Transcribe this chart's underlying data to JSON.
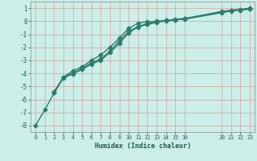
{
  "xlabel": "Humidex (Indice chaleur)",
  "background_color": "#cceee8",
  "grid_color": "#d4a0a0",
  "line_color": "#2d7d6e",
  "xlim": [
    -0.5,
    23.5
  ],
  "ylim": [
    -8.5,
    1.5
  ],
  "xticks": [
    0,
    1,
    2,
    3,
    4,
    5,
    6,
    7,
    8,
    9,
    10,
    11,
    12,
    13,
    14,
    15,
    16,
    20,
    21,
    22,
    23
  ],
  "yticks": [
    -8,
    -7,
    -6,
    -5,
    -4,
    -3,
    -2,
    -1,
    0,
    1
  ],
  "line1_x": [
    0,
    1,
    2,
    3,
    4,
    5,
    6,
    7,
    8,
    9,
    10,
    11,
    12,
    13,
    14,
    15,
    16,
    20,
    21,
    22,
    23
  ],
  "line1_y": [
    -8.0,
    -6.8,
    -5.5,
    -4.3,
    -4.0,
    -3.6,
    -3.2,
    -2.9,
    -2.3,
    -1.5,
    -0.8,
    -0.4,
    -0.2,
    -0.05,
    0.0,
    0.1,
    0.2,
    0.75,
    0.85,
    0.9,
    1.0
  ],
  "line2_x": [
    2,
    3,
    4,
    5,
    6,
    7,
    8,
    9,
    10,
    11,
    12,
    13,
    14,
    15,
    16,
    20,
    21,
    22,
    23
  ],
  "line2_y": [
    -5.4,
    -4.3,
    -3.8,
    -3.5,
    -3.0,
    -2.6,
    -2.0,
    -1.3,
    -0.55,
    -0.15,
    -0.05,
    0.0,
    0.05,
    0.15,
    0.2,
    0.7,
    0.8,
    0.88,
    0.95
  ],
  "line3_x": [
    2,
    3,
    4,
    5,
    6,
    7,
    8,
    9,
    10,
    11,
    12,
    13,
    14,
    15,
    16,
    20,
    21,
    22,
    23
  ],
  "line3_y": [
    -5.5,
    -4.35,
    -4.05,
    -3.7,
    -3.3,
    -3.0,
    -2.4,
    -1.7,
    -0.9,
    -0.45,
    -0.25,
    -0.1,
    0.05,
    0.1,
    0.15,
    0.65,
    0.78,
    0.85,
    0.92
  ],
  "marker": "D",
  "markersize": 2.5,
  "linewidth": 1.0
}
